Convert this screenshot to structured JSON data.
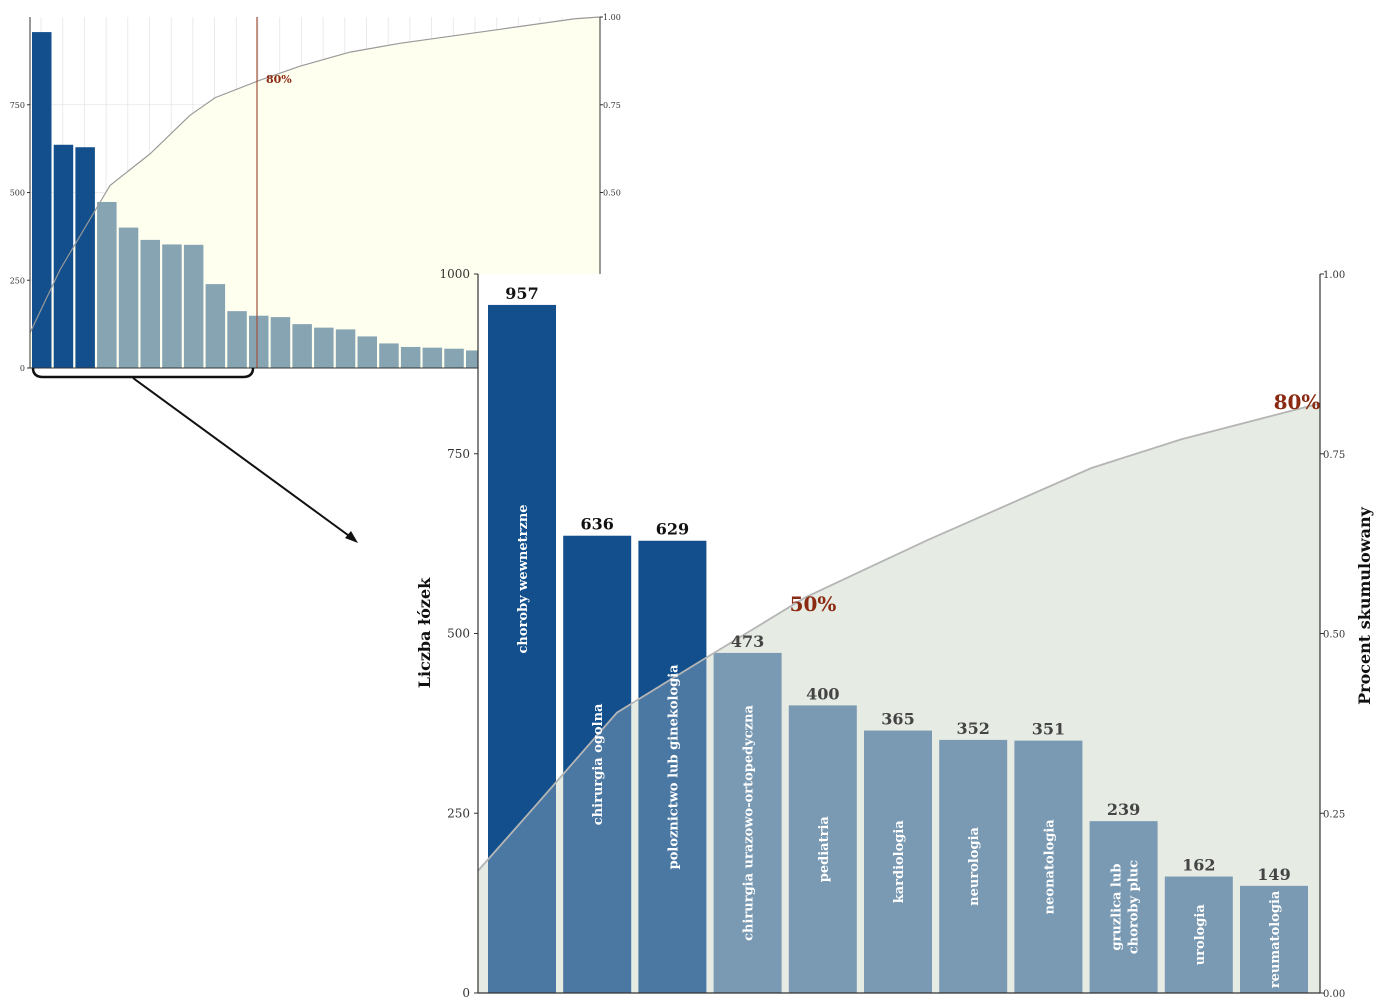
{
  "chart_data": [
    {
      "type": "bar",
      "panel": "overview",
      "categories": [
        "choroby wewnetrzne",
        "chirurgia ogolna",
        "poloznictwo lub ginekologia",
        "chirurgia urazowo-ortopedyczna",
        "pediatria",
        "kardiologia",
        "neurologia",
        "neonatologia",
        "gruzlica lub choroby pluc",
        "urologia",
        "reumatologia",
        "",
        "",
        "",
        "",
        "",
        "",
        "",
        "",
        "",
        "",
        ""
      ],
      "values": [
        957,
        636,
        629,
        473,
        400,
        365,
        352,
        351,
        239,
        162,
        149,
        145,
        125,
        115,
        110,
        90,
        70,
        60,
        58,
        55,
        50,
        45
      ],
      "cumulative": [
        0.14,
        0.24,
        0.33,
        0.4,
        0.46,
        0.51,
        0.56,
        0.61,
        0.65,
        0.69,
        0.72,
        0.74,
        0.76,
        0.78,
        0.8,
        0.86,
        0.89,
        0.91,
        0.93,
        0.95,
        0.97,
        1.0
      ],
      "highlighted_count": 3,
      "ylim": [
        0,
        1000
      ],
      "y_ticks": [
        "0",
        "250",
        "500",
        "750"
      ],
      "y2_ticks": [
        "0.50",
        "0.75",
        "1.00"
      ],
      "cutoff_label": "80%",
      "grid": true
    },
    {
      "type": "bar",
      "panel": "zoom",
      "categories": [
        "choroby wewnetrzne",
        "chirurgia ogolna",
        "poloznictwo lub ginekologia",
        "chirurgia urazowo-ortopedyczna",
        "pediatria",
        "kardiologia",
        "neurologia",
        "neonatologia",
        "gruzlica lub\nchoroby pluc",
        "urologia",
        "reumatologia"
      ],
      "values": [
        957,
        636,
        629,
        473,
        400,
        365,
        352,
        351,
        239,
        162,
        149
      ],
      "cumulative_x": [
        0,
        0.7,
        1.7,
        2.7,
        4.0,
        5.5,
        7.5,
        8.6,
        10.3
      ],
      "cumulative_y": [
        0.17,
        0.26,
        0.39,
        0.46,
        0.55,
        0.63,
        0.73,
        0.77,
        0.82
      ],
      "highlighted_count": 3,
      "ylim": [
        0,
        1000
      ],
      "y2lim": [
        0,
        1
      ],
      "y_ticks": [
        "0",
        "250",
        "500",
        "750",
        "1000"
      ],
      "y2_ticks": [
        "0.00",
        "0.25",
        "0.50",
        "0.75",
        "1.00"
      ],
      "ylabel": "Liczba łózek",
      "y2label": "Procent skumulowany",
      "annotations": [
        "50%",
        "80%"
      ],
      "grid": false
    }
  ],
  "colors": {
    "highlight": "#124f8c",
    "bar": "#5a82a3",
    "bar_small": "#87a4b3",
    "cum_fill": "#fffff0",
    "cum_line": "#9a9a9a",
    "accent": "#8b2a12"
  }
}
